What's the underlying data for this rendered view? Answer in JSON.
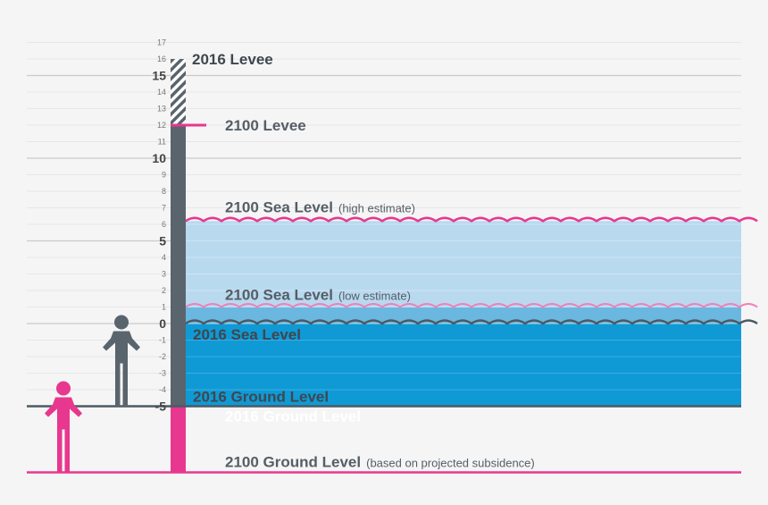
{
  "axis": {
    "minor_ticks": [
      "17",
      "16",
      "14",
      "13",
      "12",
      "11",
      "9",
      "8",
      "7",
      "6",
      "4",
      "3",
      "2",
      "1",
      "-1",
      "-2",
      "-3",
      "-4"
    ],
    "minor_values": [
      17,
      16,
      14,
      13,
      12,
      11,
      9,
      8,
      7,
      6,
      4,
      3,
      2,
      1,
      -1,
      -2,
      -3,
      -4
    ],
    "major_ticks": [
      "15",
      "10",
      "5",
      "0",
      "-5"
    ],
    "major_values": [
      15,
      10,
      5,
      0,
      -5
    ]
  },
  "levels": {
    "levee_2016": 16,
    "levee_2100": 12,
    "sea_2100_high": 6.2,
    "sea_2100_low": 1,
    "sea_2016": 0,
    "ground_2016": -5,
    "ground_2100": -9
  },
  "labels": {
    "levee_2016": "2016 Levee",
    "levee_2100": "2100 Levee",
    "sea_2100_high": "2100 Sea Level",
    "sea_2100_high_note": "(high estimate)",
    "sea_2100_low": "2100 Sea Level",
    "sea_2100_low_note": "(low estimate)",
    "sea_2016": "2016 Sea Level",
    "ground_2016": "2016 Ground Level",
    "ground_2016_ghost": "2016 Ground Level",
    "ground_2100": "2100 Ground Level",
    "ground_2100_note": "(based on projected subsidence)"
  },
  "colors": {
    "magenta": "#e8378f",
    "slate": "#5a646d",
    "water_light": "#b9d9ef",
    "water_deep": "#0f9ad6",
    "water_mid": "#6ab7df",
    "grid": "#d8d8d8"
  },
  "icons": [
    "person-2016-icon",
    "person-2100-icon"
  ]
}
